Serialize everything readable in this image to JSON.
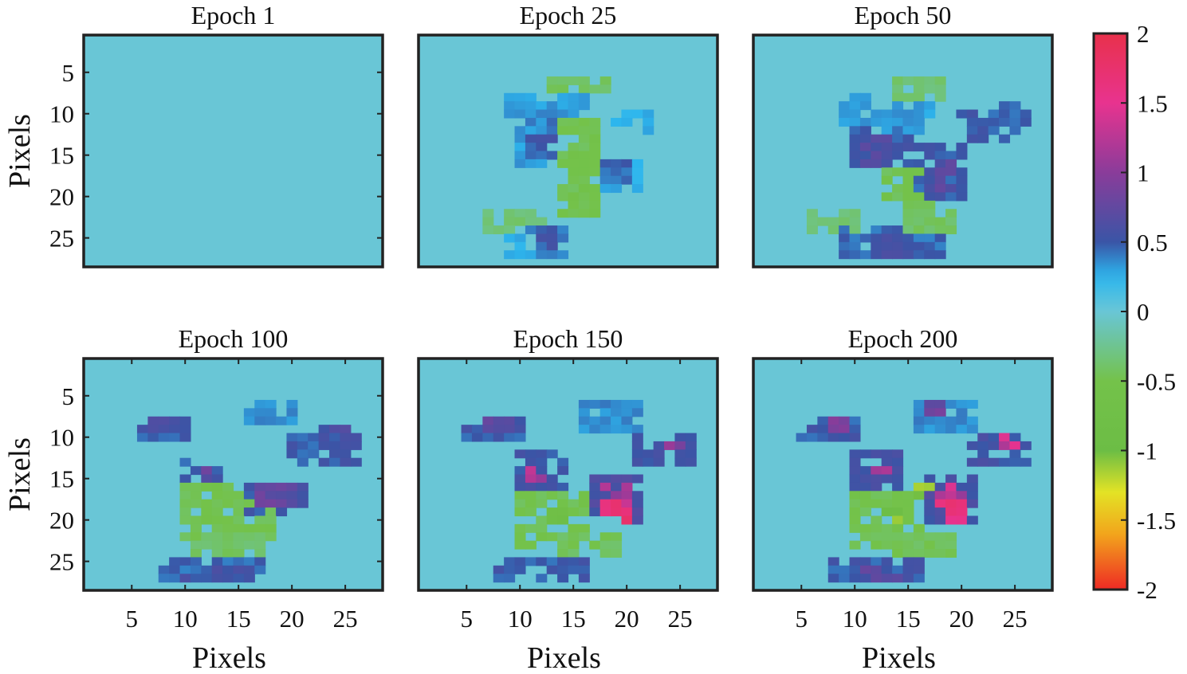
{
  "chart_data": {
    "type": "heatmap",
    "grid_size": [
      28,
      28
    ],
    "x_label": "Pixels",
    "y_label": "Pixels",
    "x_ticks": [
      5,
      10,
      15,
      20,
      25
    ],
    "y_ticks": [
      5,
      10,
      15,
      20,
      25
    ],
    "x_range": [
      0.5,
      28.5
    ],
    "y_range": [
      0.5,
      28.5
    ],
    "y_reversed": true,
    "background_value": 0,
    "colorbar": {
      "range": [
        -2,
        2
      ],
      "ticks": [
        "2",
        "1.5",
        "1",
        "0.5",
        "0",
        "-0.5",
        "-1",
        "-1.5",
        "-2"
      ],
      "stops": [
        {
          "value": 2.0,
          "color": "#e8314b"
        },
        {
          "value": 1.5,
          "color": "#e8338f"
        },
        {
          "value": 1.0,
          "color": "#8a3c9a"
        },
        {
          "value": 0.5,
          "color": "#3a55a6"
        },
        {
          "value": 0.25,
          "color": "#2cb6ee"
        },
        {
          "value": 0.0,
          "color": "#69c6d6"
        },
        {
          "value": -0.5,
          "color": "#74c24a"
        },
        {
          "value": -1.0,
          "color": "#6cbd45"
        },
        {
          "value": -1.3,
          "color": "#e3e325"
        },
        {
          "value": -1.6,
          "color": "#f2a51c"
        },
        {
          "value": -2.0,
          "color": "#ee2a24"
        }
      ]
    },
    "panels": [
      {
        "title": "Epoch 1",
        "regions": []
      },
      {
        "title": "Epoch 25",
        "regions": [
          {
            "x": [
              9,
              16
            ],
            "y": [
              8,
              10
            ],
            "v": 0.35
          },
          {
            "x": [
              10,
              12
            ],
            "y": [
              10,
              16
            ],
            "v": 0.35
          },
          {
            "x": [
              11,
              13
            ],
            "y": [
              10,
              12
            ],
            "v": 0.5
          },
          {
            "x": [
              11,
              13
            ],
            "y": [
              13,
              15
            ],
            "v": 0.55
          },
          {
            "x": [
              13,
              18
            ],
            "y": [
              6,
              7
            ],
            "v": -0.45
          },
          {
            "x": [
              14,
              17
            ],
            "y": [
              11,
              22
            ],
            "v": -0.55
          },
          {
            "x": [
              15,
              16
            ],
            "y": [
              19,
              21
            ],
            "v": -0.6
          },
          {
            "x": [
              18,
              21
            ],
            "y": [
              16,
              19
            ],
            "v": 0.3
          },
          {
            "x": [
              18,
              20
            ],
            "y": [
              16,
              18
            ],
            "v": 0.5
          },
          {
            "x": [
              19,
              22
            ],
            "y": [
              10,
              12
            ],
            "v": 0.3
          },
          {
            "x": [
              7,
              12
            ],
            "y": [
              22,
              24
            ],
            "v": -0.4
          },
          {
            "x": [
              11,
              14
            ],
            "y": [
              23,
              27
            ],
            "v": 0.45
          },
          {
            "x": [
              12,
              13
            ],
            "y": [
              24,
              26
            ],
            "v": 0.55
          },
          {
            "x": [
              9,
              11
            ],
            "y": [
              25,
              27
            ],
            "v": 0.3
          }
        ]
      },
      {
        "title": "Epoch 50",
        "regions": [
          {
            "x": [
              9,
              12
            ],
            "y": [
              8,
              11
            ],
            "v": 0.35
          },
          {
            "x": [
              10,
              15
            ],
            "y": [
              12,
              16
            ],
            "v": 0.55
          },
          {
            "x": [
              11,
              13
            ],
            "y": [
              13,
              16
            ],
            "v": 0.7
          },
          {
            "x": [
              13,
              17
            ],
            "y": [
              9,
              12
            ],
            "v": 0.35
          },
          {
            "x": [
              13,
              17
            ],
            "y": [
              17,
              21
            ],
            "v": -0.55
          },
          {
            "x": [
              16,
              20
            ],
            "y": [
              14,
              20
            ],
            "v": 0.55
          },
          {
            "x": [
              17,
              19
            ],
            "y": [
              16,
              19
            ],
            "v": 0.75
          },
          {
            "x": [
              20,
              25
            ],
            "y": [
              10,
              13
            ],
            "v": 0.55
          },
          {
            "x": [
              24,
              26
            ],
            "y": [
              9,
              11
            ],
            "v": 0.5
          },
          {
            "x": [
              6,
              10
            ],
            "y": [
              22,
              24
            ],
            "v": -0.4
          },
          {
            "x": [
              9,
              18
            ],
            "y": [
              24,
              27
            ],
            "v": 0.5
          },
          {
            "x": [
              12,
              15
            ],
            "y": [
              25,
              27
            ],
            "v": 0.6
          },
          {
            "x": [
              15,
              19
            ],
            "y": [
              22,
              24
            ],
            "v": -0.45
          },
          {
            "x": [
              14,
              18
            ],
            "y": [
              6,
              8
            ],
            "v": -0.4
          }
        ]
      },
      {
        "title": "Epoch 100",
        "regions": [
          {
            "x": [
              6,
              10
            ],
            "y": [
              8,
              10
            ],
            "v": 0.55
          },
          {
            "x": [
              7,
              9
            ],
            "y": [
              8,
              9
            ],
            "v": 0.7
          },
          {
            "x": [
              10,
              13
            ],
            "y": [
              13,
              16
            ],
            "v": 0.55
          },
          {
            "x": [
              11,
              12
            ],
            "y": [
              14,
              15
            ],
            "v": 0.85
          },
          {
            "x": [
              10,
              18
            ],
            "y": [
              16,
              22
            ],
            "v": -0.55
          },
          {
            "x": [
              16,
              21
            ],
            "y": [
              16,
              19
            ],
            "v": 0.6
          },
          {
            "x": [
              17,
              20
            ],
            "y": [
              16,
              18
            ],
            "v": 0.85
          },
          {
            "x": [
              20,
              26
            ],
            "y": [
              10,
              13
            ],
            "v": 0.55
          },
          {
            "x": [
              23,
              26
            ],
            "y": [
              9,
              11
            ],
            "v": 0.65
          },
          {
            "x": [
              11,
              17
            ],
            "y": [
              22,
              24
            ],
            "v": -0.45
          },
          {
            "x": [
              8,
              17
            ],
            "y": [
              25,
              27
            ],
            "v": 0.5
          },
          {
            "x": [
              10,
              16
            ],
            "y": [
              26,
              27
            ],
            "v": 0.6
          },
          {
            "x": [
              16,
              20
            ],
            "y": [
              6,
              8
            ],
            "v": 0.4
          }
        ]
      },
      {
        "title": "Epoch 150",
        "regions": [
          {
            "x": [
              5,
              10
            ],
            "y": [
              8,
              10
            ],
            "v": 0.55
          },
          {
            "x": [
              7,
              9
            ],
            "y": [
              8,
              9
            ],
            "v": 0.8
          },
          {
            "x": [
              10,
              14
            ],
            "y": [
              12,
              16
            ],
            "v": 0.6
          },
          {
            "x": [
              11,
              12
            ],
            "y": [
              14,
              15
            ],
            "v": 1.3
          },
          {
            "x": [
              10,
              16
            ],
            "y": [
              17,
              23
            ],
            "v": -0.55
          },
          {
            "x": [
              13,
              14
            ],
            "y": [
              19,
              20
            ],
            "v": -0.9
          },
          {
            "x": [
              17,
              21
            ],
            "y": [
              15,
              20
            ],
            "v": 0.65
          },
          {
            "x": [
              18,
              20
            ],
            "y": [
              16,
              18
            ],
            "v": 1.2
          },
          {
            "x": [
              18,
              20
            ],
            "y": [
              18,
              19
            ],
            "v": 1.7
          },
          {
            "x": [
              19,
              20
            ],
            "y": [
              19,
              20
            ],
            "v": 1.9
          },
          {
            "x": [
              21,
              26
            ],
            "y": [
              10,
              13
            ],
            "v": 0.6
          },
          {
            "x": [
              24,
              25
            ],
            "y": [
              10,
              11
            ],
            "v": 1.1
          },
          {
            "x": [
              8,
              16
            ],
            "y": [
              25,
              27
            ],
            "v": 0.55
          },
          {
            "x": [
              14,
              19
            ],
            "y": [
              22,
              24
            ],
            "v": -0.5
          },
          {
            "x": [
              16,
              21
            ],
            "y": [
              6,
              9
            ],
            "v": 0.4
          }
        ]
      },
      {
        "title": "Epoch 200",
        "regions": [
          {
            "x": [
              5,
              10
            ],
            "y": [
              8,
              10
            ],
            "v": 0.55
          },
          {
            "x": [
              8,
              9
            ],
            "y": [
              8,
              9
            ],
            "v": 1.0
          },
          {
            "x": [
              10,
              14
            ],
            "y": [
              12,
              16
            ],
            "v": 0.6
          },
          {
            "x": [
              12,
              13
            ],
            "y": [
              13,
              14
            ],
            "v": 1.4
          },
          {
            "x": [
              10,
              16
            ],
            "y": [
              17,
              23
            ],
            "v": -0.55
          },
          {
            "x": [
              13,
              14
            ],
            "y": [
              19,
              20
            ],
            "v": -1.1
          },
          {
            "x": [
              16,
              17
            ],
            "y": [
              16,
              17
            ],
            "v": -1.3
          },
          {
            "x": [
              17,
              21
            ],
            "y": [
              15,
              20
            ],
            "v": 0.65
          },
          {
            "x": [
              18,
              20
            ],
            "y": [
              16,
              18
            ],
            "v": 1.4
          },
          {
            "x": [
              18,
              20
            ],
            "y": [
              18,
              19
            ],
            "v": 1.9
          },
          {
            "x": [
              19,
              20
            ],
            "y": [
              19,
              20
            ],
            "v": 2.0
          },
          {
            "x": [
              21,
              26
            ],
            "y": [
              10,
              13
            ],
            "v": 0.6
          },
          {
            "x": [
              24,
              25
            ],
            "y": [
              10,
              11
            ],
            "v": 1.5
          },
          {
            "x": [
              8,
              16
            ],
            "y": [
              25,
              27
            ],
            "v": 0.55
          },
          {
            "x": [
              11,
              14
            ],
            "y": [
              26,
              27
            ],
            "v": 0.8
          },
          {
            "x": [
              14,
              19
            ],
            "y": [
              22,
              24
            ],
            "v": -0.5
          },
          {
            "x": [
              16,
              21
            ],
            "y": [
              6,
              9
            ],
            "v": 0.4
          },
          {
            "x": [
              17,
              18
            ],
            "y": [
              6,
              7
            ],
            "v": 0.9
          }
        ]
      }
    ]
  }
}
